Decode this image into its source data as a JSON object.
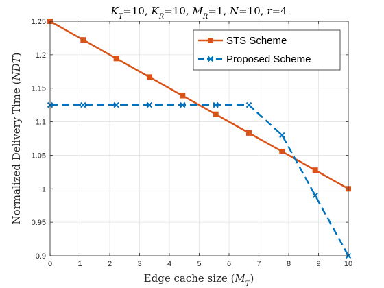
{
  "chart_data": {
    "type": "line",
    "title": "K_T=10, K_R=10, M_R=1, N=10, r=4",
    "title_parts": [
      {
        "main": "K",
        "sub": "T",
        "rest": "=10, "
      },
      {
        "main": "K",
        "sub": "R",
        "rest": "=10, "
      },
      {
        "main": "M",
        "sub": "R",
        "rest": "=1, "
      },
      {
        "main": "N",
        "sub": "",
        "rest": "=10, "
      },
      {
        "main": "r",
        "sub": "",
        "rest": "=4"
      }
    ],
    "xlabel": "Edge cache size (M_T)",
    "xlabel_parts": {
      "text": "Edge cache size (",
      "main": "M",
      "sub": "T",
      "end": ")"
    },
    "ylabel": "Normalized Delivery Time (NDT)",
    "xlim": [
      0,
      10
    ],
    "ylim": [
      0.9,
      1.25
    ],
    "xticks": [
      0,
      1,
      2,
      3,
      4,
      5,
      6,
      7,
      8,
      9,
      10
    ],
    "yticks": [
      0.9,
      0.95,
      1,
      1.05,
      1.1,
      1.15,
      1.2,
      1.25
    ],
    "ytick_labels": [
      "0.9",
      "0.95",
      "1",
      "1.05",
      "1.1",
      "1.15",
      "1.2",
      "1.25"
    ],
    "grid": true,
    "legend_position": "top-right",
    "series": [
      {
        "name": "STS Scheme",
        "color": "#D95319",
        "line_style": "solid",
        "marker": "square",
        "x": [
          0,
          1.111,
          2.222,
          3.333,
          4.444,
          5.556,
          6.667,
          7.778,
          8.889,
          10
        ],
        "y": [
          1.25,
          1.2222,
          1.1944,
          1.1667,
          1.1389,
          1.1111,
          1.0833,
          1.0556,
          1.0278,
          1.0
        ]
      },
      {
        "name": "Proposed Scheme",
        "color": "#0072BD",
        "line_style": "dashed",
        "marker": "x",
        "x": [
          0,
          1.111,
          2.222,
          3.333,
          4.444,
          5.556,
          6.667,
          7.778,
          8.889,
          10
        ],
        "y": [
          1.125,
          1.125,
          1.125,
          1.125,
          1.125,
          1.125,
          1.125,
          1.08,
          0.99,
          0.9
        ]
      }
    ]
  }
}
